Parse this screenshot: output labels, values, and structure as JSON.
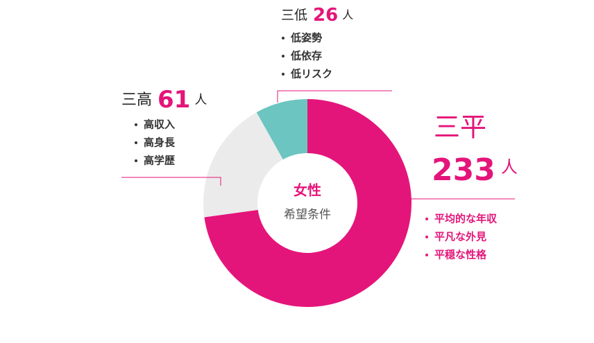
{
  "chart_data": {
    "type": "donut",
    "center_title": "女性",
    "center_subtitle": "希望条件",
    "unit": "人",
    "categories": [
      "三平",
      "三高",
      "三低"
    ],
    "values": [
      233,
      61,
      26
    ],
    "colors": [
      "#e4157a",
      "#ebebeb",
      "#6cc5c0"
    ],
    "details": [
      [
        "平均的な年収",
        "平凡な外見",
        "平穏な性格"
      ],
      [
        "高収入",
        "高身長",
        "高学歴"
      ],
      [
        "低姿勢",
        "低依存",
        "低リスク"
      ]
    ]
  }
}
